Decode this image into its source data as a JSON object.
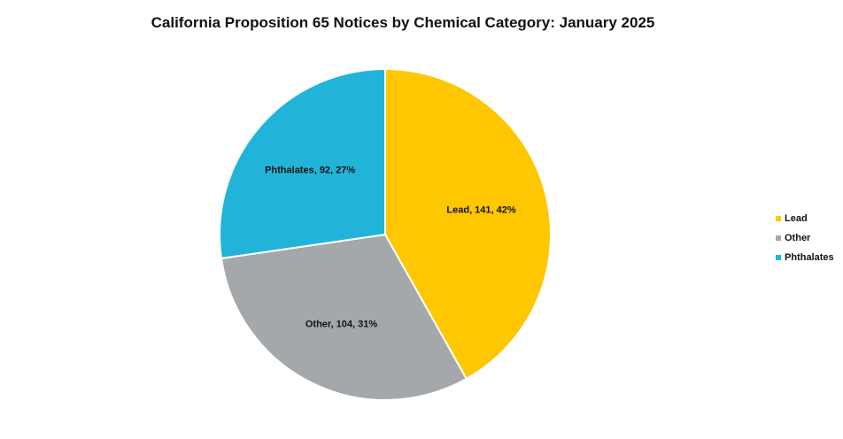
{
  "chart_data": {
    "type": "pie",
    "title": "California Proposition 65 Notices by Chemical Category: January 2025",
    "categories": [
      "Lead",
      "Other",
      "Phthalates"
    ],
    "values": [
      141,
      104,
      92
    ],
    "percents": [
      42,
      31,
      27
    ],
    "data_labels": [
      "Lead, 141, 42%",
      "Other, 104, 31%",
      "Phthalates, 92, 27%"
    ],
    "colors": [
      "#FFC700",
      "#A5A8AA",
      "#22B4D8"
    ],
    "legend_position": "right"
  }
}
